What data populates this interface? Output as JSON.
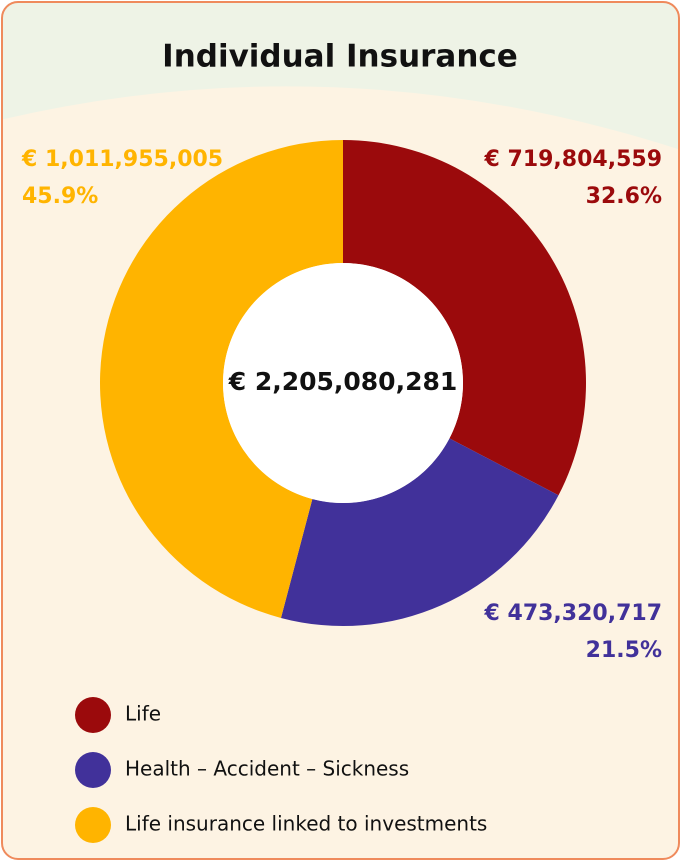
{
  "chart_data": {
    "type": "pie",
    "donut": true,
    "title": "Individual Insurance",
    "total_label": "€ 2,205,080,281",
    "categories": [
      "Life",
      "Health – Accident – Sickness",
      "Life insurance linked to investments"
    ],
    "values": [
      719804559,
      473320717,
      1011955005
    ],
    "value_labels": [
      "€ 719,804,559",
      "€ 473,320,717",
      "€ 1,011,955,005"
    ],
    "percent_labels": [
      "32.6%",
      "21.5%",
      "45.9%"
    ],
    "colors": [
      "#9b0a0c",
      "#41319a",
      "#ffb400"
    ]
  }
}
